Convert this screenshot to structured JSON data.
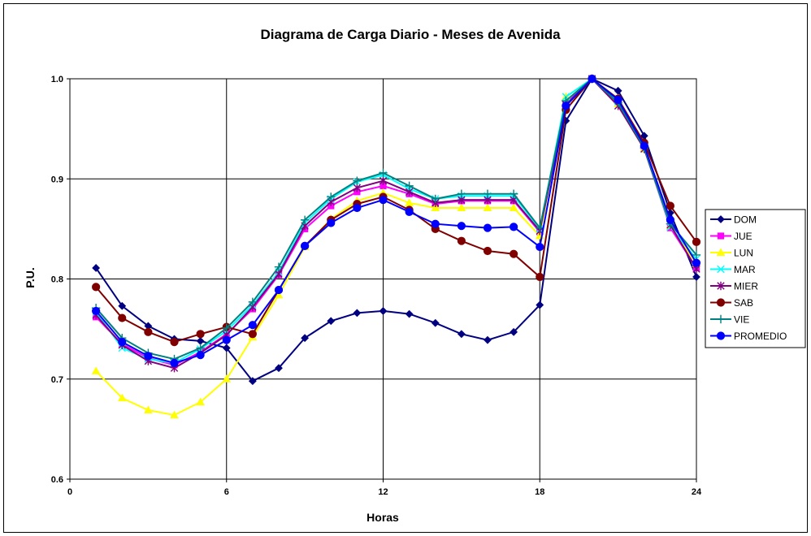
{
  "chart_data": {
    "type": "line",
    "title": "Diagrama de Carga Diario - Meses de Avenida",
    "xlabel": "Horas",
    "ylabel": "P.U.",
    "xlim": [
      0,
      24
    ],
    "ylim": [
      0.6,
      1.0
    ],
    "xticks": [
      0,
      6,
      12,
      18,
      24
    ],
    "yticks": [
      0.6,
      0.7,
      0.8,
      0.9,
      1.0
    ],
    "ytick_labels": [
      "0.6",
      "0.7",
      "0.8",
      "0.9",
      "1.0"
    ],
    "grid": true,
    "legend_position": "right",
    "x": [
      1,
      2,
      3,
      4,
      5,
      6,
      7,
      8,
      9,
      10,
      11,
      12,
      13,
      14,
      15,
      16,
      17,
      18,
      19,
      20,
      21,
      22,
      23,
      24
    ],
    "series": [
      {
        "name": "DOM",
        "color": "#000080",
        "marker": "diamond",
        "values": [
          0.811,
          0.773,
          0.753,
          0.74,
          0.738,
          0.731,
          0.698,
          0.711,
          0.741,
          0.758,
          0.766,
          0.768,
          0.765,
          0.756,
          0.745,
          0.739,
          0.747,
          0.774,
          0.958,
          1.0,
          0.988,
          0.943,
          0.866,
          0.802
        ]
      },
      {
        "name": "JUE",
        "color": "#FF00FF",
        "marker": "square",
        "values": [
          0.762,
          0.735,
          0.721,
          0.714,
          0.727,
          0.745,
          0.77,
          0.804,
          0.85,
          0.873,
          0.887,
          0.893,
          0.885,
          0.875,
          0.878,
          0.878,
          0.878,
          0.847,
          0.975,
          1.0,
          0.977,
          0.93,
          0.851,
          0.811
        ]
      },
      {
        "name": "LUN",
        "color": "#FFFF00",
        "marker": "triangle",
        "values": [
          0.708,
          0.681,
          0.669,
          0.664,
          0.677,
          0.7,
          0.742,
          0.784,
          0.832,
          0.86,
          0.878,
          0.886,
          0.876,
          0.871,
          0.871,
          0.871,
          0.871,
          0.843,
          0.982,
          1.0,
          0.975,
          0.93,
          0.853,
          0.815
        ]
      },
      {
        "name": "MAR",
        "color": "#00FFFF",
        "marker": "x",
        "values": [
          0.767,
          0.731,
          0.72,
          0.716,
          0.73,
          0.748,
          0.774,
          0.807,
          0.856,
          0.88,
          0.897,
          0.904,
          0.89,
          0.88,
          0.883,
          0.883,
          0.883,
          0.85,
          0.982,
          1.0,
          0.977,
          0.93,
          0.852,
          0.82
        ]
      },
      {
        "name": "MIER",
        "color": "#800080",
        "marker": "star",
        "values": [
          0.764,
          0.734,
          0.718,
          0.711,
          0.726,
          0.744,
          0.772,
          0.805,
          0.853,
          0.877,
          0.891,
          0.898,
          0.887,
          0.876,
          0.879,
          0.879,
          0.879,
          0.848,
          0.974,
          1.0,
          0.973,
          0.93,
          0.854,
          0.81
        ]
      },
      {
        "name": "SAB",
        "color": "#800000",
        "marker": "circle",
        "values": [
          0.792,
          0.761,
          0.747,
          0.737,
          0.745,
          0.752,
          0.745,
          0.789,
          0.833,
          0.859,
          0.875,
          0.882,
          0.869,
          0.85,
          0.838,
          0.828,
          0.825,
          0.802,
          0.969,
          1.0,
          0.98,
          0.936,
          0.873,
          0.837
        ]
      },
      {
        "name": "VIE",
        "color": "#008080",
        "marker": "plus",
        "values": [
          0.771,
          0.741,
          0.726,
          0.72,
          0.731,
          0.751,
          0.777,
          0.812,
          0.859,
          0.882,
          0.898,
          0.906,
          0.893,
          0.88,
          0.885,
          0.885,
          0.885,
          0.851,
          0.978,
          1.0,
          0.976,
          0.931,
          0.855,
          0.824
        ]
      },
      {
        "name": "PROMEDIO",
        "color": "#0000FF",
        "marker": "circle",
        "values": [
          0.768,
          0.737,
          0.723,
          0.716,
          0.724,
          0.739,
          0.754,
          0.789,
          0.833,
          0.856,
          0.871,
          0.879,
          0.867,
          0.855,
          0.853,
          0.851,
          0.852,
          0.832,
          0.973,
          1.0,
          0.979,
          0.933,
          0.859,
          0.816
        ]
      }
    ]
  }
}
